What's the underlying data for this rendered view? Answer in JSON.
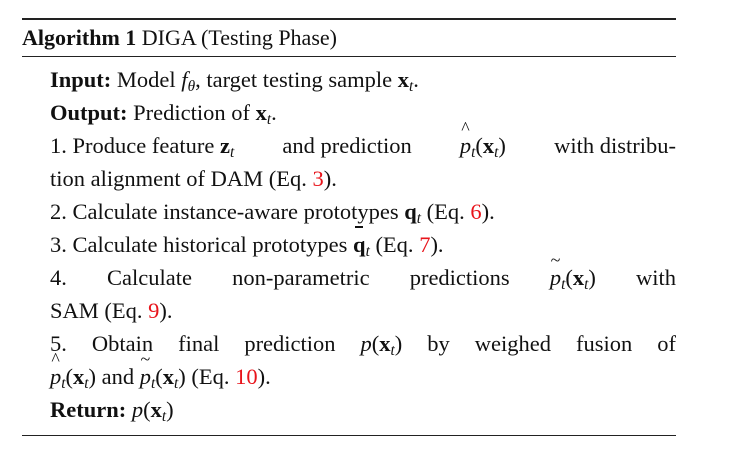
{
  "algorithm": {
    "label": "Algorithm 1",
    "title": "DIGA (Testing Phase)"
  },
  "input": {
    "keyword": "Input:",
    "model_text": "Model",
    "sample_text": ", target testing sample"
  },
  "output": {
    "keyword": "Output:",
    "text": "Prediction of"
  },
  "steps": {
    "s1": {
      "a": "1. Produce feature",
      "b": "and prediction",
      "c": "with distribu-",
      "d": "tion alignment of DAM (Eq.",
      "ref": "3",
      "e": ")."
    },
    "s2": {
      "a": "2. Calculate instance-aware prototypes",
      "b": "(Eq.",
      "ref": "6",
      "c": ")."
    },
    "s3": {
      "a": "3. Calculate historical prototypes",
      "b": "(Eq.",
      "ref": "7",
      "c": ")."
    },
    "s4": {
      "num": "4.",
      "w1": "Calculate",
      "w2": "non-parametric",
      "w3": "predictions",
      "w4": "with",
      "d": "SAM (Eq.",
      "ref": "9",
      "e": ")."
    },
    "s5": {
      "num": "5.",
      "w1": "Obtain",
      "w2": "final",
      "w3": "prediction",
      "w4": "by",
      "w5": "weighed",
      "w6": "fusion",
      "w7": "of",
      "and": "and",
      "b": "(Eq.",
      "ref": "10",
      "c": ")."
    }
  },
  "return": {
    "keyword": "Return:"
  },
  "colors": {
    "text": "#111111",
    "reference": "#e8141b"
  }
}
